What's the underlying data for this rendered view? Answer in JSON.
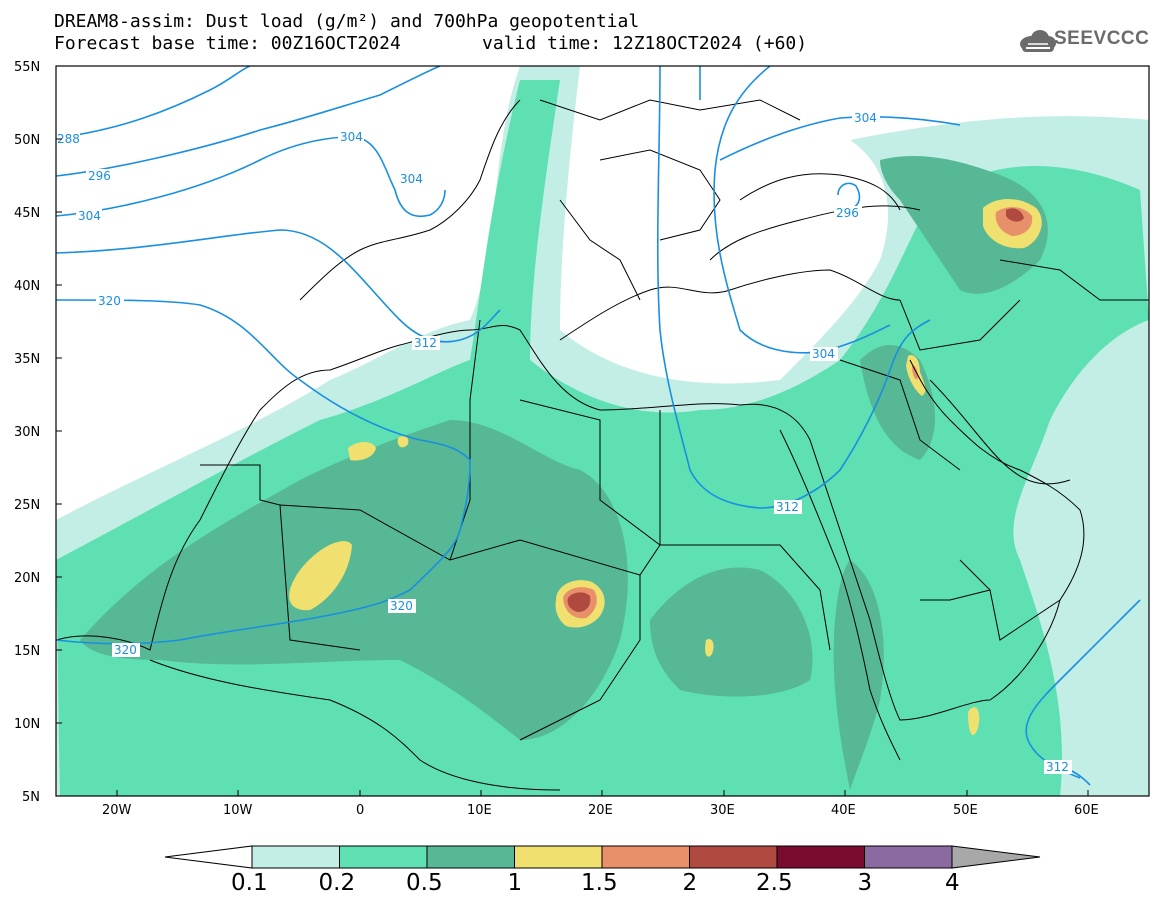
{
  "title": {
    "line1": "DREAM8-assim: Dust load (g/m²) and 700hPa geopotential",
    "line2_left": "Forecast base time: 00Z16OCT2024",
    "line2_right": "valid time: 12Z18OCT2024 (+60)"
  },
  "logo": {
    "text": "SEEVCCC",
    "icon": "cloud-icon"
  },
  "lat_ticks": [
    "55N",
    "50N",
    "45N",
    "40N",
    "35N",
    "30N",
    "25N",
    "20N",
    "15N",
    "10N",
    "5N"
  ],
  "lon_ticks": [
    "20W",
    "10W",
    "0",
    "10E",
    "20E",
    "30E",
    "40E",
    "50E",
    "60E"
  ],
  "contour_labels": [
    "288",
    "296",
    "304",
    "304",
    "304",
    "304",
    "296",
    "312",
    "320",
    "320",
    "320",
    "304",
    "312",
    "312"
  ],
  "colorbar": {
    "labels": [
      "0.1",
      "0.2",
      "0.5",
      "1",
      "1.5",
      "2",
      "2.5",
      "3",
      "4"
    ],
    "colors": [
      "#ffffff",
      "#c2eee6",
      "#5fe0b2",
      "#56b894",
      "#f0e070",
      "#e8906a",
      "#b04a40",
      "#7a0c30",
      "#8a6aa0",
      "#a8a8a8"
    ]
  },
  "colors": {
    "contour": "#1a8fe0",
    "background": "#ffffff"
  }
}
